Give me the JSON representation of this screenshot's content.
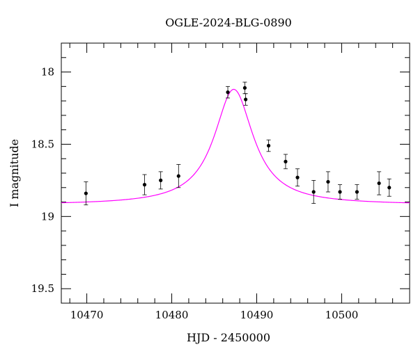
{
  "chart_data": {
    "type": "scatter",
    "title": "OGLE-2024-BLG-0890",
    "xlabel": "HJD - 2450000",
    "ylabel": "I magnitude",
    "xlim": [
      10467,
      10508
    ],
    "ylim": [
      19.6,
      17.8
    ],
    "y_inverted": true,
    "x_ticks": [
      10470,
      10480,
      10490,
      10500
    ],
    "y_ticks": [
      18,
      18.5,
      19,
      19.5
    ],
    "y_tick_labels": [
      "18",
      "18.5",
      "19",
      "19.5"
    ],
    "series": [
      {
        "kind": "points_with_errorbars",
        "color": "#000000",
        "points": [
          {
            "x": 10469.9,
            "y": 18.84,
            "err": 0.08
          },
          {
            "x": 10476.8,
            "y": 18.78,
            "err": 0.07
          },
          {
            "x": 10478.7,
            "y": 18.75,
            "err": 0.06
          },
          {
            "x": 10480.8,
            "y": 18.72,
            "err": 0.08
          },
          {
            "x": 10486.6,
            "y": 18.14,
            "err": 0.04
          },
          {
            "x": 10488.6,
            "y": 18.11,
            "err": 0.04
          },
          {
            "x": 10488.7,
            "y": 18.19,
            "err": 0.04
          },
          {
            "x": 10491.4,
            "y": 18.51,
            "err": 0.04
          },
          {
            "x": 10493.4,
            "y": 18.62,
            "err": 0.05
          },
          {
            "x": 10494.8,
            "y": 18.73,
            "err": 0.06
          },
          {
            "x": 10496.7,
            "y": 18.83,
            "err": 0.08
          },
          {
            "x": 10498.4,
            "y": 18.76,
            "err": 0.07
          },
          {
            "x": 10499.8,
            "y": 18.83,
            "err": 0.05
          },
          {
            "x": 10501.8,
            "y": 18.83,
            "err": 0.05
          },
          {
            "x": 10504.4,
            "y": 18.77,
            "err": 0.08
          },
          {
            "x": 10505.6,
            "y": 18.8,
            "err": 0.06
          }
        ]
      },
      {
        "kind": "model_curve",
        "color": "#ff00ff",
        "model": {
          "peak_x": 10487.3,
          "peak_mag": 18.12,
          "baseline_mag": 18.92,
          "half_width": 2.8
        }
      }
    ],
    "grid": false,
    "legend": "none"
  }
}
